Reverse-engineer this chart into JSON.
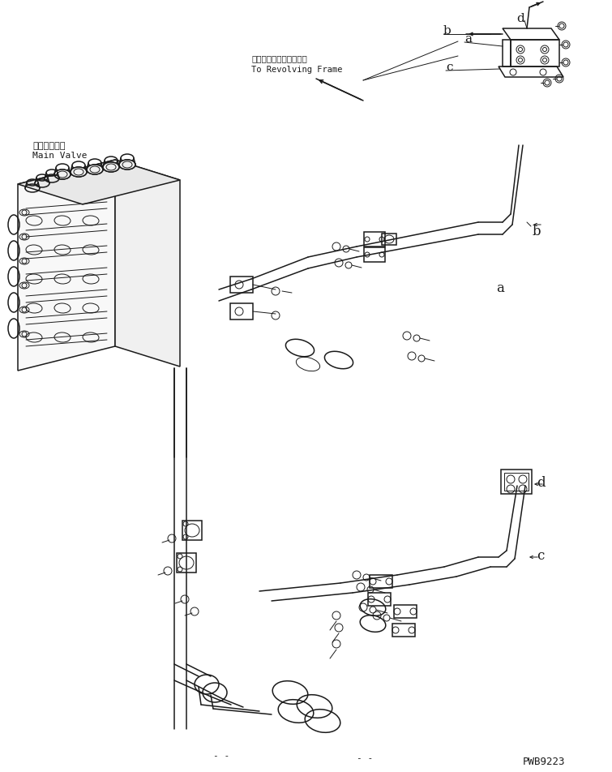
{
  "background_color": "#ffffff",
  "line_color": "#1a1a1a",
  "text_color": "#1a1a1a",
  "part_number": "PWB9223",
  "label_a": "a",
  "label_b": "b",
  "label_c": "c",
  "label_d": "d",
  "japanese_mv": "メインバルブ",
  "english_mv": "Main Valve",
  "revolving_jp": "レボルビングフレームヘ",
  "revolving_en": "To Revolving Frame",
  "dash_bottom1": "- -",
  "dash_bottom2": "- -",
  "figw": 7.55,
  "figh": 9.53,
  "dpi": 100
}
